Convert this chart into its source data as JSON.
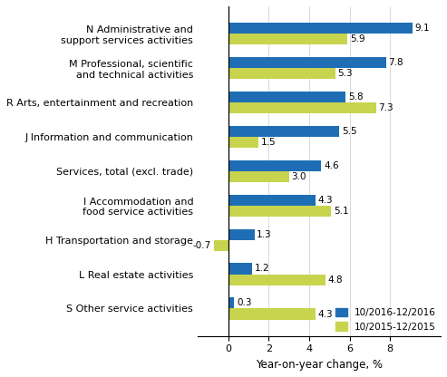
{
  "categories": [
    "S Other service activities",
    "L Real estate activities",
    "H Transportation and storage",
    "I Accommodation and\nfood service activities",
    "Services, total (excl. trade)",
    "J Information and communication",
    "R Arts, entertainment and recreation",
    "M Professional, scientific\nand technical activities",
    "N Administrative and\nsupport services activities"
  ],
  "series1_label": "10/2016-12/2016",
  "series2_label": "10/2015-12/2015",
  "series1_values": [
    0.3,
    1.2,
    1.3,
    4.3,
    4.6,
    5.5,
    5.8,
    7.8,
    9.1
  ],
  "series2_values": [
    4.3,
    4.8,
    -0.7,
    5.1,
    3.0,
    1.5,
    7.3,
    5.3,
    5.9
  ],
  "series1_color": "#1F6EB5",
  "series2_color": "#C8D44E",
  "xlabel": "Year-on-year change, %",
  "xlim": [
    -1.5,
    10.5
  ],
  "xticks": [
    0,
    2,
    4,
    6,
    8
  ],
  "bar_height": 0.32,
  "label_fontsize": 7.5,
  "tick_fontsize": 8.0,
  "xlabel_fontsize": 8.5
}
